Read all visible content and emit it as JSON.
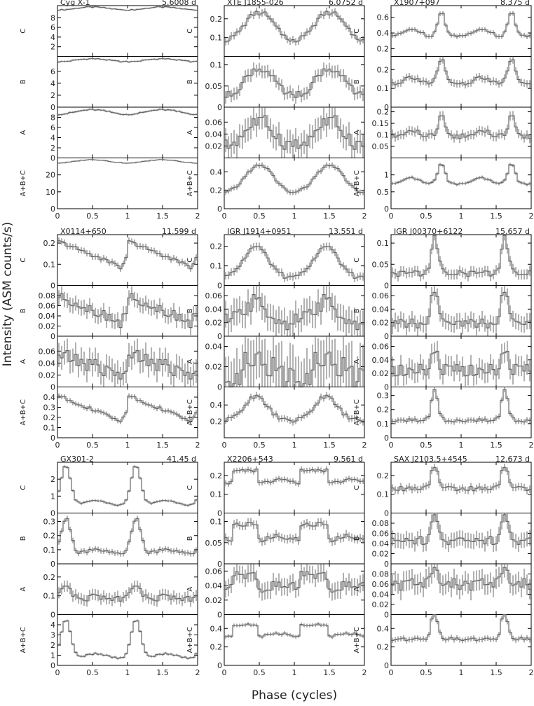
{
  "figure": {
    "ylabel": "Intensity (ASM counts/s)",
    "xlabel": "Phase (cycles)",
    "x_ticks": [
      "0",
      "0.5",
      "1",
      "1.5",
      "2"
    ],
    "band_labels": [
      "C",
      "B",
      "A",
      "A+B+C"
    ],
    "colors": {
      "axis": "#000000",
      "data": "#666666",
      "text": "#222222"
    }
  },
  "chart_data": [
    {
      "type": "line",
      "object": "Cyg X-1",
      "period": "5.6008 d",
      "xlim": [
        0,
        2
      ],
      "profile": "sine",
      "panels": [
        {
          "band": "C",
          "yticks": [
            "2",
            "4",
            "6",
            "8"
          ],
          "ylim": [
            0,
            10.5
          ],
          "base": 9.6,
          "amp": 0.6,
          "err": 0.15
        },
        {
          "band": "B",
          "yticks": [
            "0",
            "2",
            "4",
            "6"
          ],
          "ylim": [
            0,
            8.5
          ],
          "base": 7.6,
          "amp": 0.5,
          "err": 0.15
        },
        {
          "band": "A",
          "yticks": [
            "0",
            "2",
            "4",
            "6",
            "8"
          ],
          "ylim": [
            0,
            10
          ],
          "base": 8.6,
          "amp": 0.9,
          "err": 0.2
        },
        {
          "band": "A+B+C",
          "yticks": [
            "0",
            "10",
            "20"
          ],
          "ylim": [
            0,
            30
          ],
          "base": 27,
          "amp": 2.0,
          "err": 0.3
        }
      ]
    },
    {
      "type": "line",
      "object": "XTE J1855-026",
      "period": "6.0752 d",
      "xlim": [
        0,
        2
      ],
      "profile": "eclipse",
      "panels": [
        {
          "band": "C",
          "yticks": [
            "0.1",
            "0.2"
          ],
          "ylim": [
            0,
            0.27
          ],
          "base": 0.05,
          "amp": 0.18,
          "err": 0.02
        },
        {
          "band": "B",
          "yticks": [
            "0",
            "0.05",
            "0.1"
          ],
          "ylim": [
            0,
            0.12
          ],
          "base": 0.01,
          "amp": 0.08,
          "err": 0.015
        },
        {
          "band": "A",
          "yticks": [
            "0.02",
            "0.04",
            "0.06"
          ],
          "ylim": [
            0,
            0.085
          ],
          "base": 0.01,
          "amp": 0.05,
          "err": 0.02
        },
        {
          "band": "A+B+C",
          "yticks": [
            "0",
            "0.2",
            "0.4"
          ],
          "ylim": [
            0,
            0.55
          ],
          "base": 0.1,
          "amp": 0.36,
          "err": 0.03
        }
      ]
    },
    {
      "type": "line",
      "object": "X1907+097",
      "period": "8.375 d",
      "xlim": [
        0,
        2
      ],
      "profile": "double",
      "panels": [
        {
          "band": "C",
          "yticks": [
            "0.2",
            "0.4",
            "0.6"
          ],
          "ylim": [
            0.1,
            0.75
          ],
          "base": 0.32,
          "amp": 0.36,
          "err": 0.03
        },
        {
          "band": "B",
          "yticks": [
            "0",
            "0.1",
            "0.2"
          ],
          "ylim": [
            0,
            0.27
          ],
          "base": 0.11,
          "amp": 0.14,
          "err": 0.02
        },
        {
          "band": "A",
          "yticks": [
            "0.05",
            "0.1",
            "0.15",
            "0.2"
          ],
          "ylim": [
            0,
            0.22
          ],
          "base": 0.08,
          "amp": 0.1,
          "err": 0.02
        },
        {
          "band": "A+B+C",
          "yticks": [
            "0",
            "0.5",
            "1"
          ],
          "ylim": [
            0,
            1.5
          ],
          "base": 0.65,
          "amp": 0.7,
          "err": 0.05
        }
      ]
    },
    {
      "type": "line",
      "object": "X0114+650",
      "period": "11.599 d",
      "xlim": [
        0,
        2
      ],
      "profile": "saw",
      "panels": [
        {
          "band": "C",
          "yticks": [
            "0",
            "0.1",
            "0.2"
          ],
          "ylim": [
            0,
            0.24
          ],
          "base": 0.07,
          "amp": 0.14,
          "err": 0.015
        },
        {
          "band": "B",
          "yticks": [
            "0",
            "0.02",
            "0.04",
            "0.06",
            "0.08"
          ],
          "ylim": [
            0,
            0.1
          ],
          "base": 0.02,
          "amp": 0.06,
          "err": 0.015
        },
        {
          "band": "A",
          "yticks": [
            "0",
            "0.02",
            "0.04",
            "0.06"
          ],
          "ylim": [
            0,
            0.085
          ],
          "base": 0.015,
          "amp": 0.04,
          "err": 0.02
        },
        {
          "band": "A+B+C",
          "yticks": [
            "0",
            "0.1",
            "0.2",
            "0.3",
            "0.4"
          ],
          "ylim": [
            0,
            0.5
          ],
          "base": 0.12,
          "amp": 0.3,
          "err": 0.025
        }
      ]
    },
    {
      "type": "line",
      "object": "IGR J1914+0951",
      "period": "13.551 d",
      "xlim": [
        0,
        2
      ],
      "profile": "broad",
      "panels": [
        {
          "band": "C",
          "yticks": [
            "0",
            "0.1",
            "0.2"
          ],
          "ylim": [
            0,
            0.26
          ],
          "base": 0.04,
          "amp": 0.16,
          "err": 0.02
        },
        {
          "band": "B",
          "yticks": [
            "0",
            "0.02",
            "0.04",
            "0.06"
          ],
          "ylim": [
            0,
            0.075
          ],
          "base": 0.02,
          "amp": 0.03,
          "err": 0.02
        },
        {
          "band": "A",
          "yticks": [
            "0",
            "0.02",
            "0.04"
          ],
          "ylim": [
            0,
            0.05
          ],
          "base": 0.01,
          "amp": 0.015,
          "err": 0.025
        },
        {
          "band": "A+B+C",
          "yticks": [
            "0.2",
            "0.4"
          ],
          "ylim": [
            0,
            0.62
          ],
          "base": 0.2,
          "amp": 0.3,
          "err": 0.04
        }
      ]
    },
    {
      "type": "line",
      "object": "IGR J00370+6122",
      "period": "15.657 d",
      "xlim": [
        0,
        2
      ],
      "profile": "spike",
      "panels": [
        {
          "band": "C",
          "yticks": [
            "0",
            "0.05",
            "0.1"
          ],
          "ylim": [
            0,
            0.12
          ],
          "base": 0.015,
          "amp": 0.09,
          "err": 0.012
        },
        {
          "band": "B",
          "yticks": [
            "0",
            "0.02",
            "0.04",
            "0.06"
          ],
          "ylim": [
            0,
            0.075
          ],
          "base": 0.01,
          "amp": 0.055,
          "err": 0.012
        },
        {
          "band": "A",
          "yticks": [
            "0",
            "0.02",
            "0.04",
            "0.06"
          ],
          "ylim": [
            0,
            0.075
          ],
          "base": 0.02,
          "amp": 0.03,
          "err": 0.015
        },
        {
          "band": "A+B+C",
          "yticks": [
            "0",
            "0.1",
            "0.2",
            "0.3"
          ],
          "ylim": [
            0,
            0.36
          ],
          "base": 0.09,
          "amp": 0.22,
          "err": 0.02
        }
      ]
    },
    {
      "type": "line",
      "object": "GX301-2",
      "period": "41.45 d",
      "xlim": [
        0,
        2
      ],
      "profile": "periastron",
      "panels": [
        {
          "band": "C",
          "yticks": [
            "0",
            "1",
            "2"
          ],
          "ylim": [
            0,
            3
          ],
          "base": 0.4,
          "amp": 2.4,
          "err": 0.08
        },
        {
          "band": "B",
          "yticks": [
            "0",
            "0.1",
            "0.2",
            "0.3"
          ],
          "ylim": [
            0,
            0.36
          ],
          "base": 0.06,
          "amp": 0.26,
          "err": 0.02
        },
        {
          "band": "A",
          "yticks": [
            "0",
            "0.1",
            "0.2"
          ],
          "ylim": [
            0,
            0.27
          ],
          "base": 0.08,
          "amp": 0.08,
          "err": 0.03
        },
        {
          "band": "A+B+C",
          "yticks": [
            "0",
            "1",
            "2",
            "3",
            "4"
          ],
          "ylim": [
            0,
            5
          ],
          "base": 0.6,
          "amp": 3.9,
          "err": 0.12
        }
      ]
    },
    {
      "type": "line",
      "object": "X2206+543",
      "period": "9.561 d",
      "xlim": [
        0,
        2
      ],
      "profile": "step",
      "panels": [
        {
          "band": "C",
          "yticks": [
            "0",
            "0.1",
            "0.2"
          ],
          "ylim": [
            0,
            0.27
          ],
          "base": 0.14,
          "amp": 0.09,
          "err": 0.015
        },
        {
          "band": "B",
          "yticks": [
            "0",
            "0.05",
            "0.1"
          ],
          "ylim": [
            0,
            0.12
          ],
          "base": 0.045,
          "amp": 0.05,
          "err": 0.01
        },
        {
          "band": "A",
          "yticks": [
            "0",
            "0.02",
            "0.04",
            "0.06"
          ],
          "ylim": [
            0,
            0.07
          ],
          "base": 0.03,
          "amp": 0.025,
          "err": 0.012
        },
        {
          "band": "A+B+C",
          "yticks": [
            "0",
            "0.2",
            "0.4"
          ],
          "ylim": [
            0,
            0.55
          ],
          "base": 0.27,
          "amp": 0.18,
          "err": 0.02
        }
      ]
    },
    {
      "type": "line",
      "object": "SAX J2103.5+4545",
      "period": "12.673 d",
      "xlim": [
        0,
        2
      ],
      "profile": "spike",
      "panels": [
        {
          "band": "C",
          "yticks": [
            "0",
            "0.1",
            "0.2"
          ],
          "ylim": [
            0,
            0.27
          ],
          "base": 0.11,
          "amp": 0.13,
          "err": 0.02
        },
        {
          "band": "B",
          "yticks": [
            "0",
            "0.02",
            "0.04",
            "0.06",
            "0.08"
          ],
          "ylim": [
            0,
            0.1
          ],
          "base": 0.04,
          "amp": 0.045,
          "err": 0.015
        },
        {
          "band": "A",
          "yticks": [
            "0",
            "0.02",
            "0.04",
            "0.06",
            "0.08"
          ],
          "ylim": [
            0,
            0.1
          ],
          "base": 0.055,
          "amp": 0.025,
          "err": 0.02
        },
        {
          "band": "A+B+C",
          "yticks": [
            "0",
            "0.2",
            "0.4"
          ],
          "ylim": [
            0,
            0.55
          ],
          "base": 0.24,
          "amp": 0.3,
          "err": 0.03
        }
      ]
    }
  ]
}
